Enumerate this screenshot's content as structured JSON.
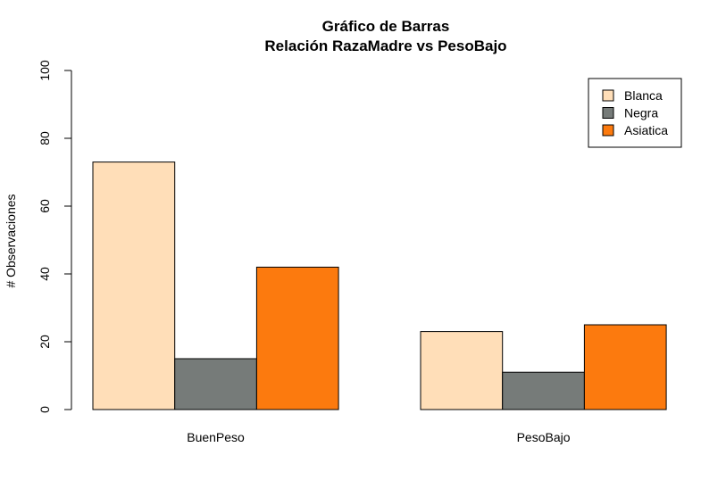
{
  "chart_data": {
    "type": "bar",
    "title": "Gráfico de Barras",
    "subtitle": "Relación RazaMadre vs PesoBajo",
    "xlabel": "",
    "ylabel": "# Observaciones",
    "ylim": [
      0,
      100
    ],
    "yticks": [
      "0",
      "20",
      "40",
      "60",
      "80",
      "100"
    ],
    "categories": [
      "BuenPeso",
      "PesoBajo"
    ],
    "series": [
      {
        "name": "Blanca",
        "color": "#FFDEB8",
        "values": [
          73,
          23
        ]
      },
      {
        "name": "Negra",
        "color": "#767B79",
        "values": [
          15,
          11
        ]
      },
      {
        "name": "Asiatica",
        "color": "#FC7A0E",
        "values": [
          42,
          25
        ]
      }
    ],
    "grid": false,
    "legend_position": "top-right"
  }
}
